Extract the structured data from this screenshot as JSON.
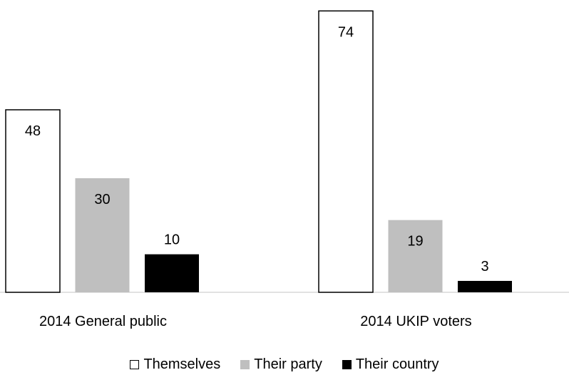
{
  "chart_data": {
    "type": "bar",
    "categories": [
      "2014 General public",
      "2014 UKIP voters"
    ],
    "series": [
      {
        "name": "Themselves",
        "values": [
          48,
          74
        ],
        "color": "#ffffff",
        "stroke": "#000000"
      },
      {
        "name": "Their party",
        "values": [
          30,
          19
        ],
        "color": "#bfbfbf",
        "stroke": "none"
      },
      {
        "name": "Their country",
        "values": [
          10,
          3
        ],
        "color": "#000000",
        "stroke": "none"
      }
    ],
    "title": "",
    "xlabel": "",
    "ylabel": "",
    "ylim": [
      0,
      75
    ],
    "grid": false,
    "legend_position": "bottom",
    "show_data_labels": true
  }
}
